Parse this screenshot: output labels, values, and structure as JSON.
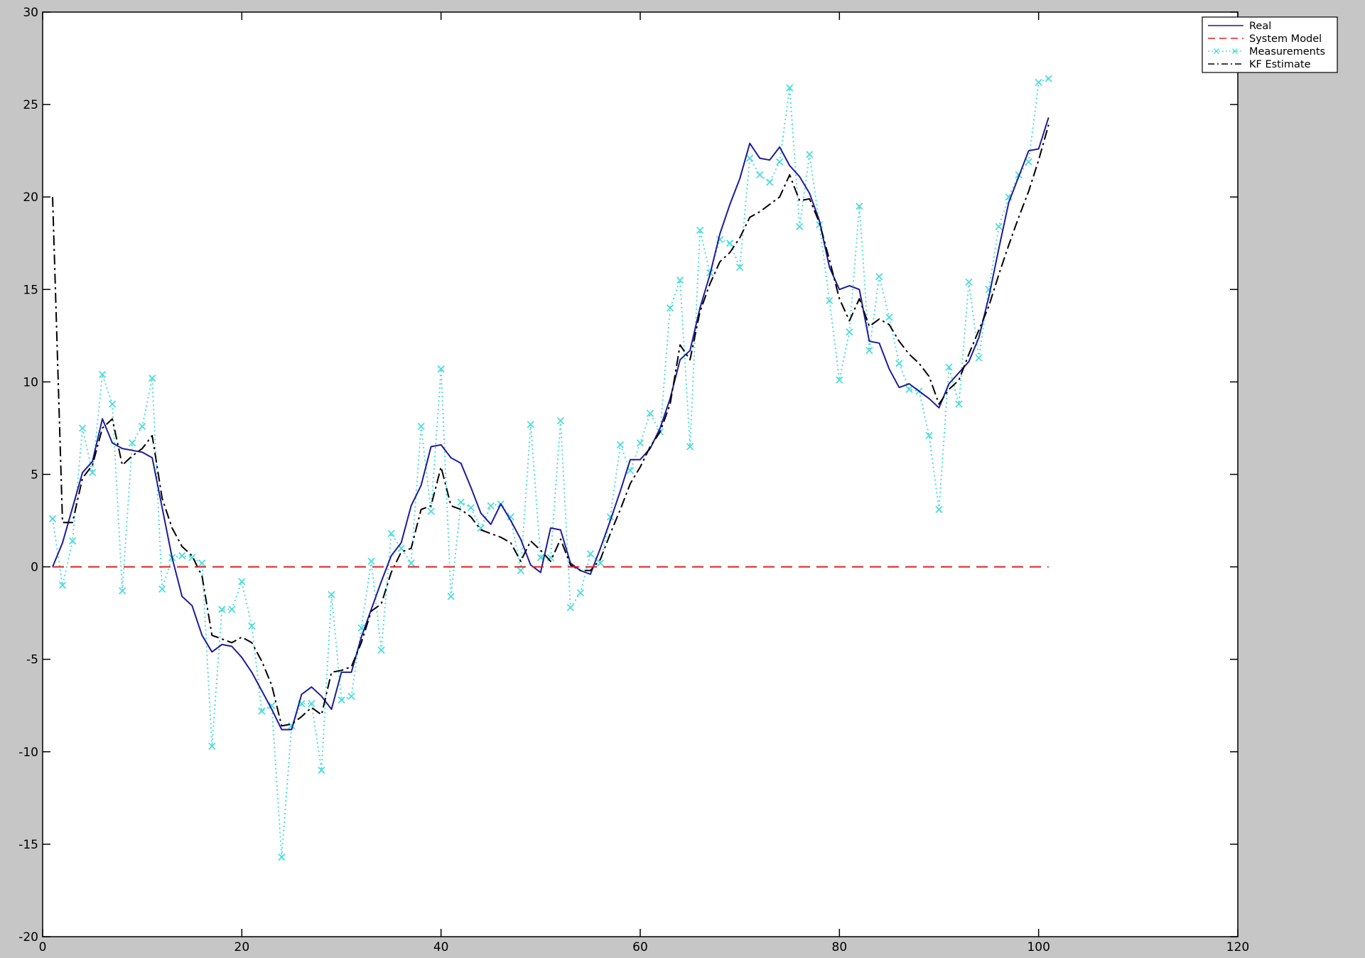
{
  "chart_data": {
    "type": "line",
    "title": "",
    "xlabel": "",
    "ylabel": "",
    "xlim": [
      0,
      120
    ],
    "ylim": [
      -20,
      30
    ],
    "x_ticks": [
      0,
      20,
      40,
      60,
      80,
      100,
      120
    ],
    "y_ticks": [
      -20,
      -15,
      -10,
      -5,
      0,
      5,
      10,
      15,
      20,
      25,
      30
    ],
    "grid": false,
    "legend_position": "top-right",
    "colors": {
      "background": "#c6c6c6",
      "plot_area": "#ffffff",
      "real": "#1c1c9c",
      "system_model": "#e02020",
      "measurements": "#4fdcdc",
      "kf_estimate": "#000000"
    },
    "series": [
      {
        "name": "Real",
        "style": "solid",
        "x": [
          1,
          2,
          3,
          4,
          5,
          6,
          7,
          8,
          9,
          10,
          11,
          12,
          13,
          14,
          15,
          16,
          17,
          18,
          19,
          20,
          21,
          22,
          23,
          24,
          25,
          26,
          27,
          28,
          29,
          30,
          31,
          32,
          33,
          34,
          35,
          36,
          37,
          38,
          39,
          40,
          41,
          42,
          43,
          44,
          45,
          46,
          47,
          48,
          49,
          50,
          51,
          52,
          53,
          54,
          55,
          56,
          57,
          58,
          59,
          60,
          61,
          62,
          63,
          64,
          65,
          66,
          67,
          68,
          69,
          70,
          71,
          72,
          73,
          74,
          75,
          76,
          77,
          78,
          79,
          80,
          81,
          82,
          83,
          84,
          85,
          86,
          87,
          88,
          89,
          90,
          91,
          92,
          93,
          94,
          95,
          96,
          97,
          98,
          99,
          100,
          101
        ],
        "y": [
          0,
          1.3,
          3.2,
          5.1,
          5.7,
          8.0,
          6.7,
          6.4,
          6.3,
          6.2,
          5.9,
          3.2,
          0.5,
          -1.6,
          -2.1,
          -3.7,
          -4.6,
          -4.2,
          -4.3,
          -4.9,
          -5.7,
          -6.7,
          -7.7,
          -8.8,
          -8.8,
          -6.9,
          -6.5,
          -7.0,
          -7.7,
          -5.7,
          -5.7,
          -3.8,
          -2.3,
          -0.8,
          0.6,
          1.3,
          3.3,
          4.4,
          6.5,
          6.6,
          5.9,
          5.6,
          4.3,
          2.9,
          2.3,
          3.4,
          2.5,
          1.5,
          0.1,
          -0.3,
          2.1,
          2.0,
          0.2,
          -0.2,
          -0.4,
          1.0,
          2.5,
          4.1,
          5.8,
          5.8,
          6.4,
          7.5,
          9.1,
          11.2,
          11.7,
          14.0,
          15.8,
          18.0,
          19.6,
          21.0,
          22.9,
          22.1,
          22.0,
          22.7,
          21.7,
          21.1,
          20.2,
          18.7,
          16.2,
          15.0,
          15.2,
          15.0,
          12.2,
          12.1,
          10.7,
          9.7,
          9.9,
          9.5,
          9.1,
          8.6,
          9.9,
          10.5,
          11.1,
          12.4,
          14.6,
          17.2,
          19.7,
          21.1,
          22.5,
          22.6,
          24.3
        ]
      },
      {
        "name": "System Model",
        "style": "dashed",
        "x": [
          1,
          101
        ],
        "y": [
          0,
          0
        ]
      },
      {
        "name": "Measurements",
        "style": "dotted-cross",
        "x": [
          1,
          2,
          3,
          4,
          5,
          6,
          7,
          8,
          9,
          10,
          11,
          12,
          13,
          14,
          15,
          16,
          17,
          18,
          19,
          20,
          21,
          22,
          23,
          24,
          25,
          26,
          27,
          28,
          29,
          30,
          31,
          32,
          33,
          34,
          35,
          36,
          37,
          38,
          39,
          40,
          41,
          42,
          43,
          44,
          45,
          46,
          47,
          48,
          49,
          50,
          51,
          52,
          53,
          54,
          55,
          56,
          57,
          58,
          59,
          60,
          61,
          62,
          63,
          64,
          65,
          66,
          67,
          68,
          69,
          70,
          71,
          72,
          73,
          74,
          75,
          76,
          77,
          78,
          79,
          80,
          81,
          82,
          83,
          84,
          85,
          86,
          87,
          88,
          89,
          90,
          91,
          92,
          93,
          94,
          95,
          96,
          97,
          98,
          99,
          100,
          101
        ],
        "y": [
          2.6,
          -1.0,
          1.4,
          7.5,
          5.1,
          10.4,
          8.8,
          -1.3,
          6.7,
          7.6,
          10.2,
          -1.2,
          0.5,
          0.6,
          0.5,
          0.2,
          -9.7,
          -2.3,
          -2.3,
          -0.8,
          -3.2,
          -7.8,
          -7.5,
          -15.7,
          -8.6,
          -7.4,
          -7.4,
          -11.0,
          -1.5,
          -7.2,
          -7.0,
          -3.3,
          0.3,
          -4.5,
          1.8,
          1.0,
          0.2,
          7.6,
          3.0,
          10.7,
          -1.6,
          3.5,
          3.2,
          2.1,
          3.3,
          3.4,
          2.7,
          -0.2,
          7.7,
          0.5,
          0.5,
          7.9,
          -2.2,
          -1.4,
          0.7,
          0.2,
          2.7,
          6.6,
          5.2,
          6.7,
          8.3,
          7.3,
          14.0,
          15.5,
          6.5,
          18.2,
          15.9,
          17.7,
          17.5,
          16.2,
          22.1,
          21.2,
          20.8,
          21.9,
          25.9,
          18.4,
          22.3,
          18.5,
          14.4,
          10.1,
          12.7,
          19.5,
          11.7,
          15.7,
          13.5,
          11.0,
          9.6,
          9.5,
          7.1,
          3.1,
          10.8,
          8.8,
          15.4,
          11.3,
          15.0,
          18.4,
          20.0,
          21.2,
          21.9,
          26.2,
          26.4
        ]
      },
      {
        "name": "KF Estimate",
        "style": "dashdot",
        "x": [
          1,
          2,
          3,
          4,
          5,
          6,
          7,
          8,
          9,
          10,
          11,
          12,
          13,
          14,
          15,
          16,
          17,
          18,
          19,
          20,
          21,
          22,
          23,
          24,
          25,
          26,
          27,
          28,
          29,
          30,
          31,
          32,
          33,
          34,
          35,
          36,
          37,
          38,
          39,
          40,
          41,
          42,
          43,
          44,
          45,
          46,
          47,
          48,
          49,
          50,
          51,
          52,
          53,
          54,
          55,
          56,
          57,
          58,
          59,
          60,
          61,
          62,
          63,
          64,
          65,
          66,
          67,
          68,
          69,
          70,
          71,
          72,
          73,
          74,
          75,
          76,
          77,
          78,
          79,
          80,
          81,
          82,
          83,
          84,
          85,
          86,
          87,
          88,
          89,
          90,
          91,
          92,
          93,
          94,
          95,
          96,
          97,
          98,
          99,
          100,
          101
        ],
        "y": [
          20,
          2.4,
          2.4,
          4.8,
          5.5,
          7.5,
          8.0,
          5.5,
          6.0,
          6.4,
          7.1,
          3.7,
          2.1,
          1.1,
          0.6,
          -0.5,
          -3.7,
          -3.9,
          -4.1,
          -3.8,
          -4.1,
          -5.1,
          -6.4,
          -8.6,
          -8.5,
          -8.1,
          -7.6,
          -8.0,
          -5.7,
          -5.6,
          -5.4,
          -4.1,
          -2.4,
          -2.0,
          -0.3,
          0.8,
          1.0,
          3.1,
          3.3,
          5.4,
          3.3,
          3.1,
          2.7,
          2.0,
          1.8,
          1.6,
          1.3,
          0.3,
          1.4,
          0.9,
          0.3,
          1.5,
          0.1,
          -0.2,
          -0.2,
          0.4,
          1.8,
          3.1,
          4.5,
          5.4,
          6.5,
          7.3,
          8.8,
          12.0,
          11.2,
          13.8,
          15.3,
          16.5,
          17.0,
          17.8,
          18.9,
          19.2,
          19.6,
          20.0,
          21.2,
          19.8,
          19.9,
          18.6,
          16.6,
          14.5,
          13.3,
          14.5,
          13.0,
          13.4,
          13.1,
          12.2,
          11.5,
          11.0,
          10.3,
          8.8,
          9.6,
          10.1,
          11.5,
          12.8,
          14.1,
          15.8,
          17.4,
          18.9,
          20.3,
          22.0,
          23.9
        ]
      }
    ]
  }
}
